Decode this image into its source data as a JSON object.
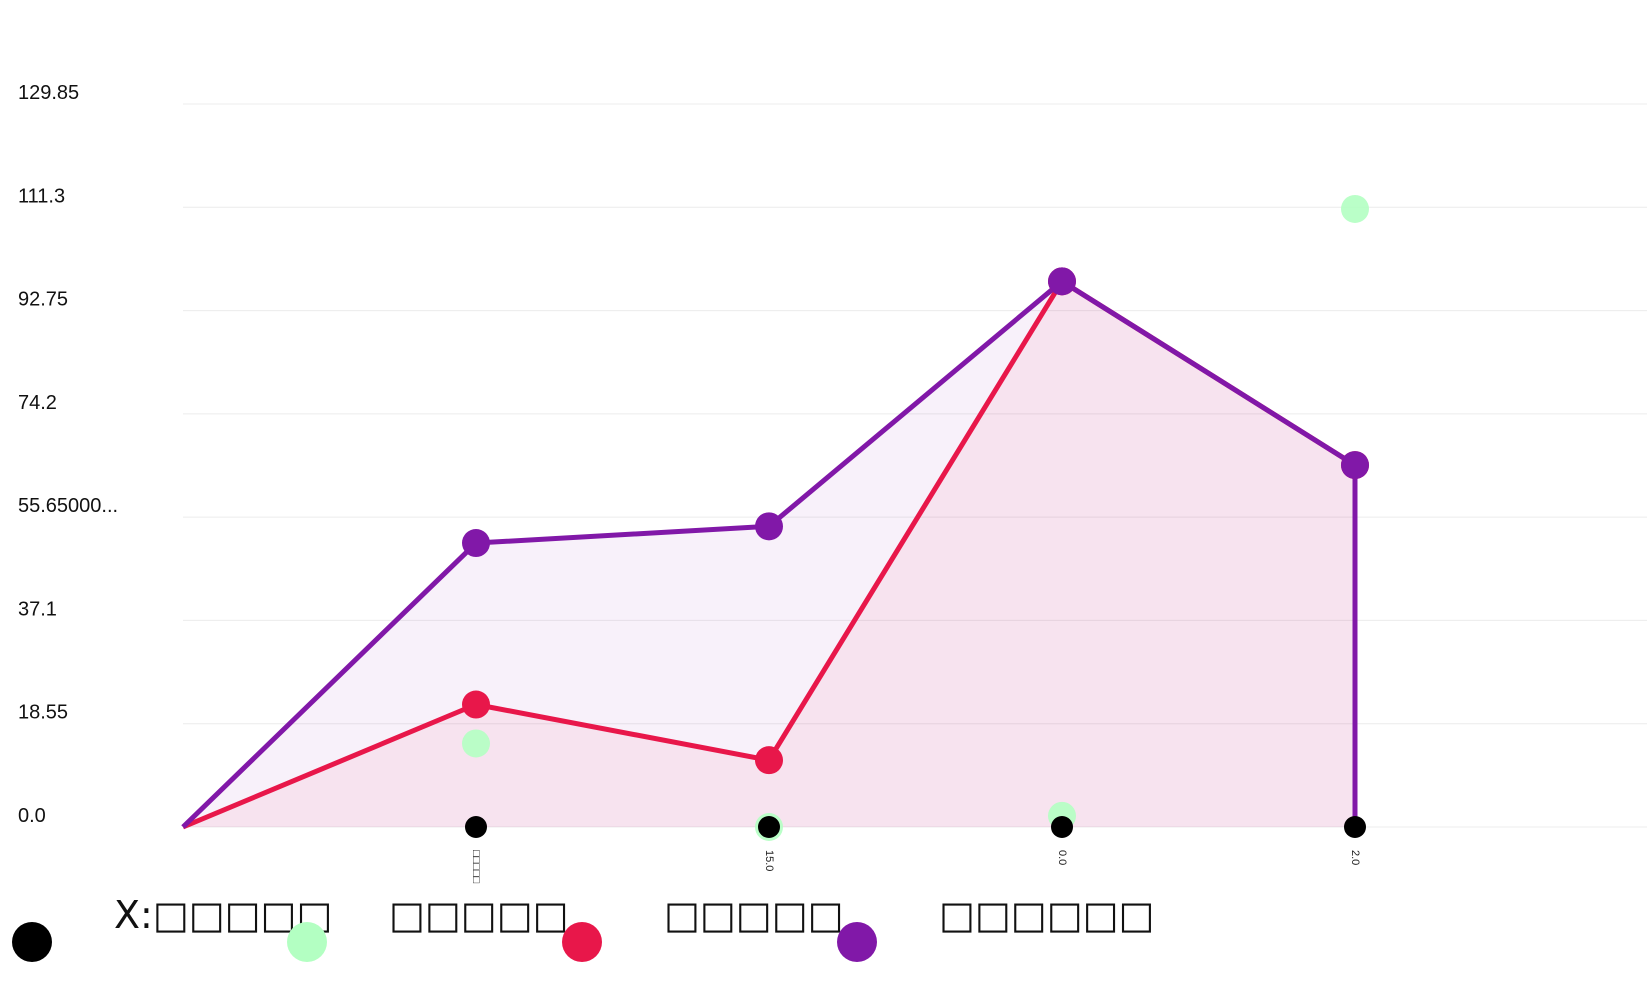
{
  "chart_data": {
    "type": "line",
    "categories": [
      "",
      "□□□□□",
      "15.0",
      "0.0",
      "2.0"
    ],
    "yticks": [
      "0.0",
      "18.55",
      "37.1",
      "55.65000...",
      "74.2",
      "92.75",
      "111.3",
      "129.85"
    ],
    "ylim": [
      0,
      129.85
    ],
    "grid": true,
    "legend_position": "bottom",
    "series": [
      {
        "name": "X:□□□□□",
        "role": "markers",
        "color": "#000000",
        "values": [
          null,
          0,
          0,
          0,
          0
        ]
      },
      {
        "name": "□□□□□",
        "role": "markers",
        "color": "#b3ffc2",
        "values": [
          null,
          15,
          0,
          2,
          111
        ]
      },
      {
        "name": "□□□□□",
        "role": "area-line",
        "color": "#e8174a",
        "values": [
          0,
          22,
          12,
          98,
          65
        ]
      },
      {
        "name": "□□□□□□",
        "role": "area-line",
        "color": "#8118a8",
        "values": [
          0,
          51,
          54,
          98,
          65
        ]
      }
    ]
  }
}
